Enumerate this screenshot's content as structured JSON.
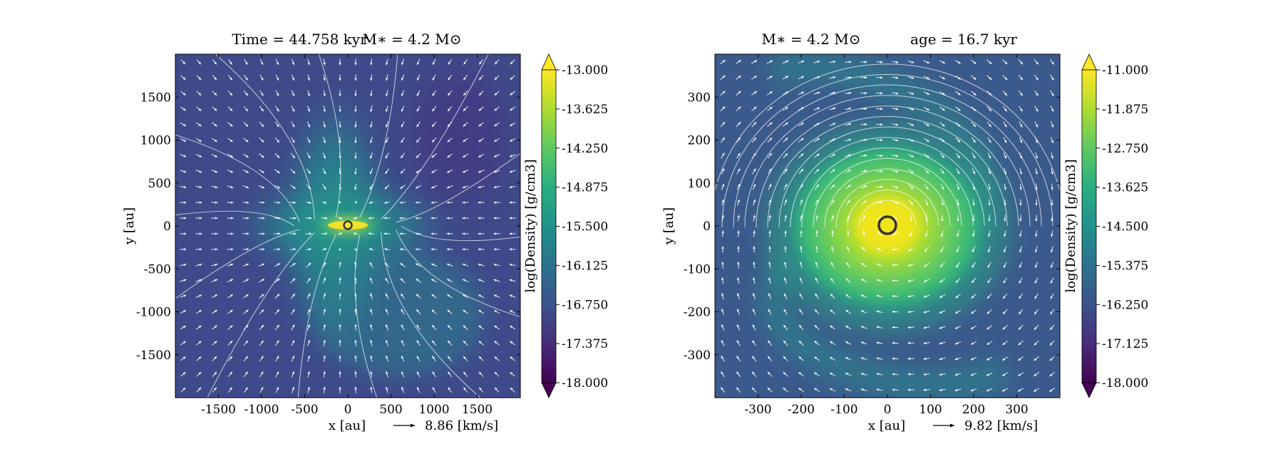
{
  "chart_data": [
    {
      "type": "heatmap",
      "title_left": "Time = 44.758 kyr",
      "title_right": "M∗ = 4.2 M⊙",
      "xlabel": "x [au]",
      "ylabel": "y [au]",
      "xlim": [
        -2000,
        2000
      ],
      "ylim": [
        -2000,
        2000
      ],
      "xticks": [
        -1500,
        -1000,
        -500,
        0,
        500,
        1000,
        1500
      ],
      "xtick_labels": [
        "-1500",
        "-1000",
        "-500",
        "0",
        "500",
        "1000",
        "1500"
      ],
      "yticks": [
        1500,
        1000,
        500,
        0,
        -500,
        -1000,
        -1500
      ],
      "ytick_labels": [
        "1500",
        "1000",
        "500",
        "0",
        "-500",
        "-1000",
        "-1500"
      ],
      "vector_key": "8.86 [km/s]",
      "colorbar": {
        "label": "log(Density) [g/cm3]",
        "range": [
          -18.0,
          -13.0
        ],
        "ticks": [
          -13.0,
          -13.625,
          -14.25,
          -14.875,
          -15.5,
          -16.125,
          -16.75,
          -17.375,
          -18.0
        ],
        "tick_labels": [
          "-13.000",
          "-13.625",
          "-14.250",
          "-14.875",
          "-15.500",
          "-16.125",
          "-16.750",
          "-17.375",
          "-18.000"
        ],
        "colormap": "viridis"
      },
      "sink_particle": [
        0,
        0
      ],
      "field_structure": "bipolar outflow with dense equatorial disk"
    },
    {
      "type": "heatmap",
      "title_left": "M∗ = 4.2 M⊙",
      "title_right": "age = 16.7 kyr",
      "xlabel": "x [au]",
      "ylabel": "y [au]",
      "xlim": [
        -400,
        400
      ],
      "ylim": [
        -400,
        400
      ],
      "xticks": [
        -300,
        -200,
        -100,
        0,
        100,
        200,
        300
      ],
      "xtick_labels": [
        "-300",
        "-200",
        "-100",
        "0",
        "100",
        "200",
        "300"
      ],
      "yticks": [
        300,
        200,
        100,
        0,
        -100,
        -200,
        -300
      ],
      "ytick_labels": [
        "300",
        "200",
        "100",
        "0",
        "-100",
        "-200",
        "-300"
      ],
      "vector_key": "9.82 [km/s]",
      "colorbar": {
        "label": "log(Density) [g/cm3]",
        "range": [
          -18.0,
          -11.0
        ],
        "ticks": [
          -11.0,
          -11.875,
          -12.75,
          -13.625,
          -14.5,
          -15.375,
          -16.25,
          -17.125,
          -18.0
        ],
        "tick_labels": [
          "-11.000",
          "-11.875",
          "-12.750",
          "-13.625",
          "-14.500",
          "-15.375",
          "-16.250",
          "-17.125",
          "-18.000"
        ],
        "colormap": "viridis"
      },
      "sink_particle": [
        0,
        0
      ],
      "field_structure": "rotating disk with spiral arms"
    }
  ]
}
